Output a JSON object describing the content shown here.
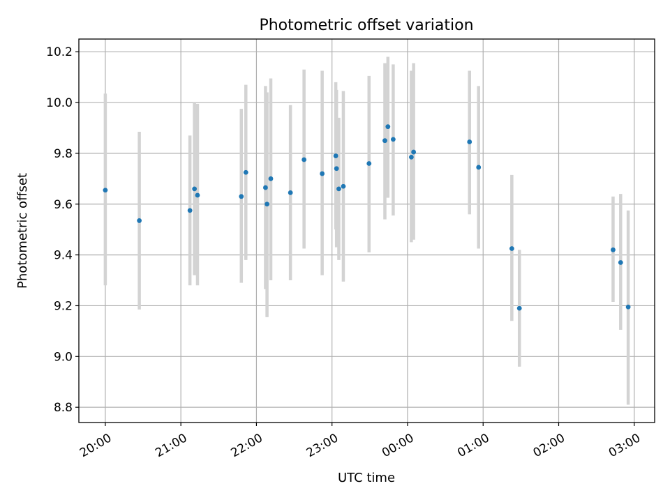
{
  "chart_data": {
    "type": "scatter",
    "title": "Photometric offset variation",
    "xlabel": "UTC time",
    "ylabel": "Photometric offset",
    "ylim": [
      8.74,
      10.25
    ],
    "xlim_hours": [
      19.65,
      27.27
    ],
    "grid": true,
    "x_ticks": [
      {
        "h": 20,
        "label": "20:00"
      },
      {
        "h": 21,
        "label": "21:00"
      },
      {
        "h": 22,
        "label": "22:00"
      },
      {
        "h": 23,
        "label": "23:00"
      },
      {
        "h": 24,
        "label": "00:00"
      },
      {
        "h": 25,
        "label": "01:00"
      },
      {
        "h": 26,
        "label": "02:00"
      },
      {
        "h": 27,
        "label": "03:00"
      }
    ],
    "y_ticks": [
      {
        "v": 8.8,
        "label": "8.8"
      },
      {
        "v": 9.0,
        "label": "9.0"
      },
      {
        "v": 9.2,
        "label": "9.2"
      },
      {
        "v": 9.4,
        "label": "9.4"
      },
      {
        "v": 9.6,
        "label": "9.6"
      },
      {
        "v": 9.8,
        "label": "9.8"
      },
      {
        "v": 10.0,
        "label": "10.0"
      },
      {
        "v": 10.2,
        "label": "10.2"
      }
    ],
    "colors": {
      "point": "#1f77b4",
      "errorbar": "#d3d3d3",
      "grid": "#b0b0b0"
    },
    "points": [
      {
        "h": 20.0,
        "y": 9.655,
        "lo": 9.28,
        "hi": 10.035
      },
      {
        "h": 20.45,
        "y": 9.535,
        "lo": 9.185,
        "hi": 9.885
      },
      {
        "h": 21.12,
        "y": 9.575,
        "lo": 9.28,
        "hi": 9.87
      },
      {
        "h": 21.18,
        "y": 9.66,
        "lo": 9.32,
        "hi": 10.0
      },
      {
        "h": 21.22,
        "y": 9.635,
        "lo": 9.28,
        "hi": 9.995
      },
      {
        "h": 21.8,
        "y": 9.63,
        "lo": 9.29,
        "hi": 9.975
      },
      {
        "h": 21.86,
        "y": 9.725,
        "lo": 9.38,
        "hi": 10.07
      },
      {
        "h": 22.12,
        "y": 9.665,
        "lo": 9.265,
        "hi": 10.065
      },
      {
        "h": 22.14,
        "y": 9.6,
        "lo": 9.155,
        "hi": 10.04
      },
      {
        "h": 22.19,
        "y": 9.7,
        "lo": 9.3,
        "hi": 10.095
      },
      {
        "h": 22.45,
        "y": 9.645,
        "lo": 9.3,
        "hi": 9.99
      },
      {
        "h": 22.63,
        "y": 9.775,
        "lo": 9.425,
        "hi": 10.13
      },
      {
        "h": 22.87,
        "y": 9.72,
        "lo": 9.32,
        "hi": 10.125
      },
      {
        "h": 23.05,
        "y": 9.79,
        "lo": 9.5,
        "hi": 10.08
      },
      {
        "h": 23.06,
        "y": 9.74,
        "lo": 9.43,
        "hi": 10.05
      },
      {
        "h": 23.09,
        "y": 9.66,
        "lo": 9.38,
        "hi": 9.94
      },
      {
        "h": 23.15,
        "y": 9.67,
        "lo": 9.295,
        "hi": 10.045
      },
      {
        "h": 23.49,
        "y": 9.76,
        "lo": 9.41,
        "hi": 10.105
      },
      {
        "h": 23.7,
        "y": 9.85,
        "lo": 9.54,
        "hi": 10.155
      },
      {
        "h": 23.74,
        "y": 9.905,
        "lo": 9.625,
        "hi": 10.18
      },
      {
        "h": 23.81,
        "y": 9.855,
        "lo": 9.555,
        "hi": 10.15
      },
      {
        "h": 24.05,
        "y": 9.785,
        "lo": 9.45,
        "hi": 10.125
      },
      {
        "h": 24.08,
        "y": 9.805,
        "lo": 9.46,
        "hi": 10.155
      },
      {
        "h": 24.82,
        "y": 9.845,
        "lo": 9.56,
        "hi": 10.125
      },
      {
        "h": 24.94,
        "y": 9.745,
        "lo": 9.425,
        "hi": 10.065
      },
      {
        "h": 25.38,
        "y": 9.425,
        "lo": 9.14,
        "hi": 9.715
      },
      {
        "h": 25.48,
        "y": 9.19,
        "lo": 8.96,
        "hi": 9.42
      },
      {
        "h": 26.72,
        "y": 9.42,
        "lo": 9.215,
        "hi": 9.63
      },
      {
        "h": 26.82,
        "y": 9.37,
        "lo": 9.105,
        "hi": 9.64
      },
      {
        "h": 26.92,
        "y": 9.195,
        "lo": 8.81,
        "hi": 9.575
      }
    ]
  }
}
